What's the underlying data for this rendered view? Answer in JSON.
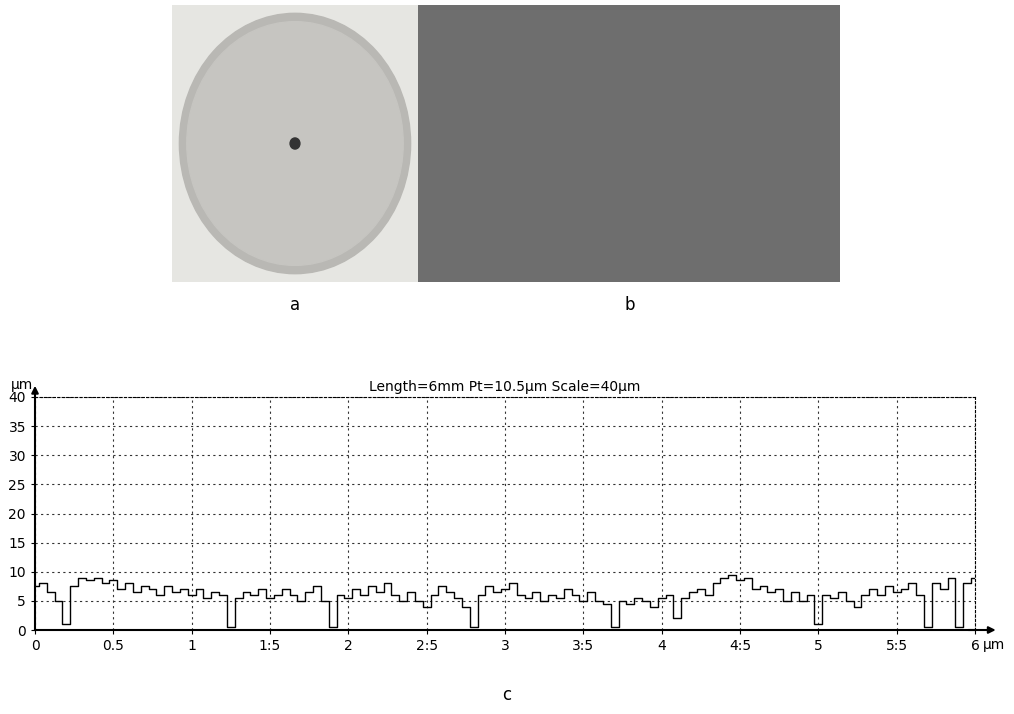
{
  "panel_labels": [
    "a",
    "b",
    "c"
  ],
  "chart_data": {
    "type": "line",
    "title": "Length=6mm Pt=10.5µm Scale=40µm",
    "x_label": "µm",
    "y_label": "µm",
    "color": "#000000",
    "grid": true,
    "xlim": [
      0,
      6
    ],
    "ylim": [
      0,
      40
    ],
    "xticks": [
      0,
      0.5,
      1,
      {
        "value": 1.5,
        "label": "1:5"
      },
      2,
      {
        "value": 2.5,
        "label": "2:5"
      },
      3,
      {
        "value": 3.5,
        "label": "3:5"
      },
      4,
      {
        "value": 4.5,
        "label": "4:5"
      },
      5,
      {
        "value": 5.5,
        "label": "5:5"
      },
      6
    ],
    "yticks": [
      0,
      5,
      10,
      15,
      20,
      25,
      30,
      35,
      40
    ],
    "x": [
      0.0,
      0.05,
      0.1,
      0.15,
      0.2,
      0.25,
      0.3,
      0.35,
      0.4,
      0.45,
      0.5,
      0.55,
      0.6,
      0.65,
      0.7,
      0.75,
      0.8,
      0.85,
      0.9,
      0.95,
      1.0,
      1.05,
      1.1,
      1.15,
      1.2,
      1.25,
      1.3,
      1.35,
      1.4,
      1.45,
      1.5,
      1.55,
      1.6,
      1.65,
      1.7,
      1.75,
      1.8,
      1.85,
      1.9,
      1.95,
      2.0,
      2.05,
      2.1,
      2.15,
      2.2,
      2.25,
      2.3,
      2.35,
      2.4,
      2.45,
      2.5,
      2.55,
      2.6,
      2.65,
      2.7,
      2.75,
      2.8,
      2.85,
      2.9,
      2.95,
      3.0,
      3.05,
      3.1,
      3.15,
      3.2,
      3.25,
      3.3,
      3.35,
      3.4,
      3.45,
      3.5,
      3.55,
      3.6,
      3.65,
      3.7,
      3.75,
      3.8,
      3.85,
      3.9,
      3.95,
      4.0,
      4.05,
      4.1,
      4.15,
      4.2,
      4.25,
      4.3,
      4.35,
      4.4,
      4.45,
      4.5,
      4.55,
      4.6,
      4.65,
      4.7,
      4.75,
      4.8,
      4.85,
      4.9,
      4.95,
      5.0,
      5.05,
      5.1,
      5.15,
      5.2,
      5.25,
      5.3,
      5.35,
      5.4,
      5.45,
      5.5,
      5.55,
      5.6,
      5.65,
      5.7,
      5.75,
      5.8,
      5.85,
      5.9,
      5.95,
      6.0
    ],
    "values": [
      7.5,
      8,
      6.5,
      5,
      1,
      7.5,
      9,
      8.5,
      9,
      8,
      8.5,
      7,
      8,
      6.5,
      7.5,
      7,
      6,
      7.5,
      6.5,
      7,
      6,
      7,
      5.5,
      6.5,
      6,
      0.5,
      5.5,
      6.5,
      6,
      7,
      5.5,
      6,
      7,
      6,
      5,
      6.5,
      7.5,
      5,
      0.5,
      6,
      5.5,
      7,
      6,
      7.5,
      6.5,
      8,
      6,
      5,
      6.5,
      5,
      4,
      6,
      7.5,
      6.5,
      5.5,
      4,
      0.5,
      6,
      7.5,
      6.5,
      7,
      8,
      6,
      5.5,
      6.5,
      5,
      6,
      5.5,
      7,
      6,
      5,
      6.5,
      5,
      4.5,
      0.5,
      5,
      4.5,
      5.5,
      5,
      4,
      5.5,
      6,
      2,
      5.5,
      6.5,
      7,
      6,
      8,
      9,
      9.5,
      8.5,
      9,
      7,
      7.5,
      6.5,
      7,
      5,
      6.5,
      5,
      6,
      1,
      6,
      5.5,
      6.5,
      5,
      4,
      6,
      7,
      6,
      7.5,
      6.5,
      7,
      8,
      6,
      0.5,
      8,
      7,
      9,
      0.5,
      8,
      9
    ]
  }
}
